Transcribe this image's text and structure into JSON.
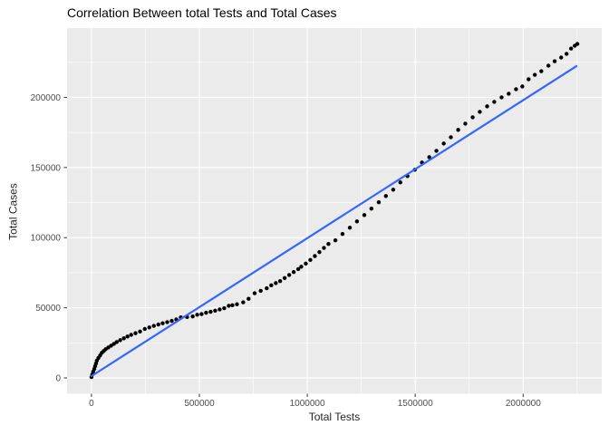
{
  "chart_data": {
    "type": "scatter",
    "title": "Correlation Between total Tests and Total Cases",
    "xlabel": "Total Tests",
    "ylabel": "Total Cases",
    "grid": true,
    "legend_position": "none",
    "panel_bg": "#EBEBEB",
    "grid_color": "#FFFFFF",
    "text_colors": {
      "title": "#000000",
      "axis_title": "#262626",
      "tick_label": "#4D4D4D",
      "tick_mark": "#333333"
    },
    "xlim": [
      -113000,
      2364000
    ],
    "ylim": [
      -11300,
      249400
    ],
    "x_ticks": {
      "values": [
        0,
        500000,
        1000000,
        1500000,
        2000000
      ],
      "labels": [
        "0",
        "500000",
        "1000000",
        "1500000",
        "2000000"
      ]
    },
    "y_ticks": {
      "values": [
        0,
        50000,
        100000,
        150000,
        200000
      ],
      "labels": [
        "0",
        "50000",
        "100000",
        "150000",
        "200000"
      ]
    },
    "x_minor": [
      250000,
      750000,
      1250000,
      1750000,
      2250000
    ],
    "y_minor": [
      25000,
      75000,
      125000,
      175000,
      225000
    ],
    "series": [
      {
        "name": "daily-cumulative-observations",
        "geom": "point",
        "color": "#000000",
        "point_radius": 2.2,
        "points": [
          [
            0,
            600
          ],
          [
            4000,
            2500
          ],
          [
            8000,
            4500
          ],
          [
            13000,
            6400
          ],
          [
            17000,
            8400
          ],
          [
            21000,
            10300
          ],
          [
            25000,
            12300
          ],
          [
            32000,
            14200
          ],
          [
            40000,
            16000
          ],
          [
            48000,
            17900
          ],
          [
            57000,
            19200
          ],
          [
            66000,
            20500
          ],
          [
            78000,
            21700
          ],
          [
            91000,
            23000
          ],
          [
            104000,
            24300
          ],
          [
            117000,
            25600
          ],
          [
            133000,
            26900
          ],
          [
            150000,
            28200
          ],
          [
            167000,
            29500
          ],
          [
            184000,
            30700
          ],
          [
            204000,
            31900
          ],
          [
            225000,
            33100
          ],
          [
            247000,
            34900
          ],
          [
            268000,
            36000
          ],
          [
            289000,
            37100
          ],
          [
            310000,
            38100
          ],
          [
            330000,
            39000
          ],
          [
            351000,
            39800
          ],
          [
            372000,
            40650
          ],
          [
            393000,
            41700
          ],
          [
            414000,
            43200
          ],
          [
            443000,
            43400
          ],
          [
            469000,
            43850
          ],
          [
            490000,
            45000
          ],
          [
            510000,
            45500
          ],
          [
            531000,
            46450
          ],
          [
            552000,
            47100
          ],
          [
            573000,
            47950
          ],
          [
            594000,
            48800
          ],
          [
            615000,
            49700
          ],
          [
            636000,
            51400
          ],
          [
            653000,
            51800
          ],
          [
            674000,
            52500
          ],
          [
            703000,
            53900
          ],
          [
            728000,
            56400
          ],
          [
            756000,
            60400
          ],
          [
            784000,
            62100
          ],
          [
            812000,
            63900
          ],
          [
            833000,
            66000
          ],
          [
            854000,
            67600
          ],
          [
            874000,
            69000
          ],
          [
            895000,
            71200
          ],
          [
            916000,
            73400
          ],
          [
            937000,
            75500
          ],
          [
            958000,
            77600
          ],
          [
            972000,
            79300
          ],
          [
            993000,
            81500
          ],
          [
            1014000,
            84100
          ],
          [
            1035000,
            86900
          ],
          [
            1056000,
            89700
          ],
          [
            1077000,
            92700
          ],
          [
            1098000,
            95500
          ],
          [
            1130000,
            98100
          ],
          [
            1163000,
            102600
          ],
          [
            1197000,
            107100
          ],
          [
            1230000,
            111600
          ],
          [
            1264000,
            116100
          ],
          [
            1297000,
            120700
          ],
          [
            1331000,
            125200
          ],
          [
            1364000,
            129700
          ],
          [
            1398000,
            134200
          ],
          [
            1431000,
            139400
          ],
          [
            1464000,
            143900
          ],
          [
            1498000,
            148400
          ],
          [
            1531000,
            153600
          ],
          [
            1565000,
            157400
          ],
          [
            1598000,
            161900
          ],
          [
            1632000,
            167100
          ],
          [
            1665000,
            171600
          ],
          [
            1699000,
            176800
          ],
          [
            1732000,
            181300
          ],
          [
            1766000,
            185800
          ],
          [
            1799000,
            189700
          ],
          [
            1833000,
            193600
          ],
          [
            1866000,
            196800
          ],
          [
            1900000,
            200000
          ],
          [
            1933000,
            202600
          ],
          [
            1967000,
            205800
          ],
          [
            1996000,
            207800
          ],
          [
            2025000,
            212900
          ],
          [
            2054000,
            216100
          ],
          [
            2084000,
            218700
          ],
          [
            2117000,
            222600
          ],
          [
            2146000,
            225800
          ],
          [
            2176000,
            228400
          ],
          [
            2201000,
            231000
          ],
          [
            2222000,
            234800
          ],
          [
            2239000,
            236800
          ],
          [
            2251000,
            238100
          ]
        ]
      },
      {
        "name": "linear-regression-fit",
        "geom": "line",
        "color": "#3366FF",
        "line_width": 2.2,
        "x": [
          0,
          2247000
        ],
        "y": [
          1300,
          222300
        ]
      }
    ]
  }
}
